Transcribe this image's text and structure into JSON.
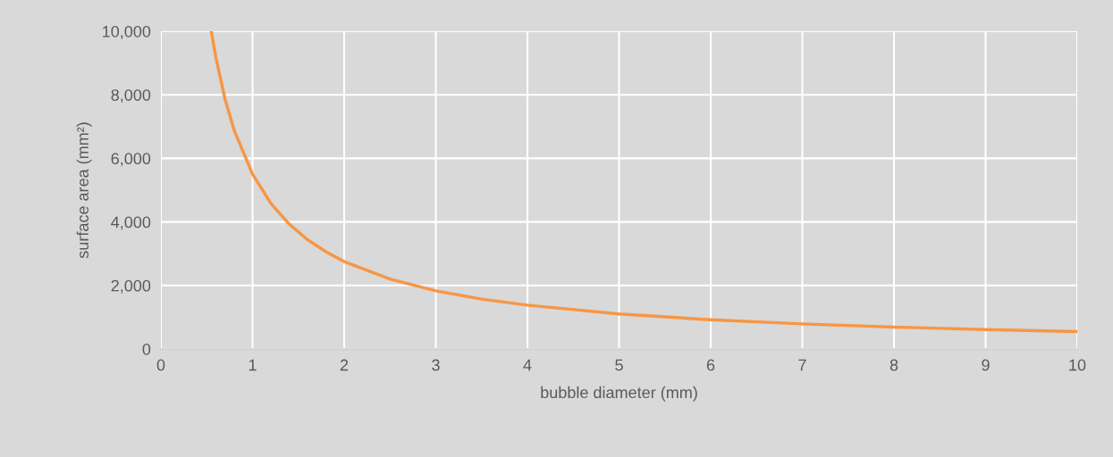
{
  "chart_data": {
    "type": "line",
    "xlabel": "bubble diameter (mm)",
    "ylabel": "surface area (mm²)",
    "x": [
      0.55,
      0.6,
      0.7,
      0.8,
      1,
      1.2,
      1.4,
      1.6,
      1.8,
      2,
      2.5,
      3,
      3.5,
      4,
      5,
      6,
      7,
      8,
      9,
      10
    ],
    "series": [
      {
        "color": "#f79646",
        "values": [
          10000,
          9170,
          7860,
          6880,
          5500,
          4580,
          3930,
          3440,
          3060,
          2750,
          2200,
          1830,
          1570,
          1380,
          1100,
          920,
          790,
          690,
          610,
          550
        ]
      }
    ],
    "xlim": [
      0,
      10
    ],
    "xticks": [
      0,
      1,
      2,
      3,
      4,
      5,
      6,
      7,
      8,
      9,
      10
    ],
    "ylim": [
      0,
      10000
    ],
    "yticks": [
      {
        "value": 0,
        "label": "0"
      },
      {
        "value": 2000,
        "label": "2,000"
      },
      {
        "value": 4000,
        "label": "4,000"
      },
      {
        "value": 6000,
        "label": "6,000"
      },
      {
        "value": 8000,
        "label": "8,000"
      },
      {
        "value": 10000,
        "label": "10,000"
      }
    ],
    "grid": true,
    "marker": "none",
    "line_style": "solid",
    "legend": false
  }
}
